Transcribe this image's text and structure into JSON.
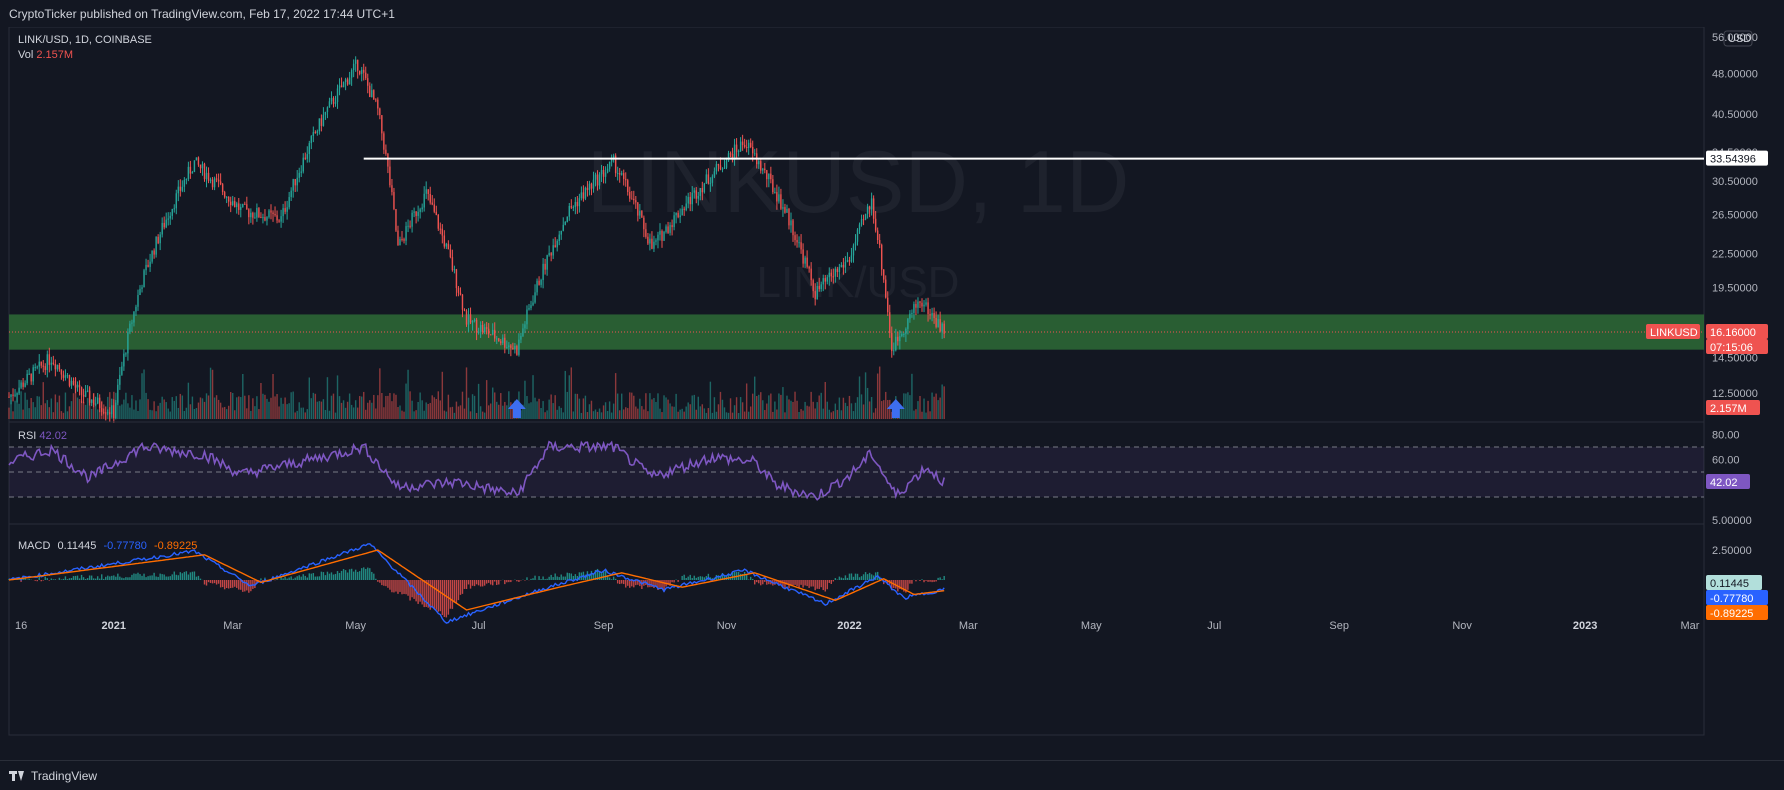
{
  "header": {
    "published": "CryptoTicker published on TradingView.com, Feb 17, 2022 17:44 UTC+1"
  },
  "footer": {
    "brand": "TradingView"
  },
  "legend": {
    "symbol_line": "LINK/USD, 1D, COINBASE",
    "vol_label": "Vol",
    "vol_value": "2.157M",
    "rsi_label": "RSI",
    "rsi_value": "42.02",
    "macd_label": "MACD",
    "macd_hist": "0.11445",
    "macd_line": "-0.77780",
    "macd_signal": "-0.89225"
  },
  "watermark": {
    "big": "LINKUSD, 1D",
    "small": "LINK/USD"
  },
  "currency_badge": "USD",
  "badges": {
    "resistance": "33.54396",
    "symbol_tag": "LINKUSD",
    "price": "16.16000",
    "countdown": "07:15:06",
    "volume": "2.157M",
    "rsi": "42.02",
    "macd_hist": "0.11445",
    "macd_line": "-0.77780",
    "macd_signal": "-0.89225"
  },
  "colors": {
    "background": "#131722",
    "up": "#26a69a",
    "down": "#ef5350",
    "zone": "#2e6b36",
    "rsi_line": "#7e57c2",
    "macd_line": "#2962ff",
    "signal_line": "#ff6d00",
    "arrow": "#3d6ef0"
  },
  "chart_data": [
    {
      "type": "candlestick",
      "title": "LINK/USD, 1D, COINBASE",
      "price_axis_ticks": [
        "56.00000",
        "48.00000",
        "40.50000",
        "34.50000",
        "30.50000",
        "26.50000",
        "22.50000",
        "19.50000",
        "14.50000",
        "12.50000"
      ],
      "scale": "log",
      "x_tick_labels": [
        "16",
        "2021",
        "Mar",
        "May",
        "Jul",
        "Sep",
        "Nov",
        "2022",
        "Mar",
        "May",
        "Jul",
        "Sep",
        "Nov",
        "2023",
        "Mar"
      ],
      "price_path": [
        {
          "date": "2020-11-10",
          "price": 12.3
        },
        {
          "date": "2020-12-01",
          "price": 14.5
        },
        {
          "date": "2020-12-15",
          "price": 12.5
        },
        {
          "date": "2021-01-01",
          "price": 11.5
        },
        {
          "date": "2021-01-15",
          "price": 20.0
        },
        {
          "date": "2021-02-10",
          "price": 33.0
        },
        {
          "date": "2021-03-05",
          "price": 27.0
        },
        {
          "date": "2021-03-25",
          "price": 26.0
        },
        {
          "date": "2021-04-15",
          "price": 40.0
        },
        {
          "date": "2021-05-02",
          "price": 50.0
        },
        {
          "date": "2021-05-12",
          "price": 41.0
        },
        {
          "date": "2021-05-22",
          "price": 23.0
        },
        {
          "date": "2021-06-05",
          "price": 29.0
        },
        {
          "date": "2021-06-25",
          "price": 17.0
        },
        {
          "date": "2021-07-20",
          "price": 15.0
        },
        {
          "date": "2021-08-15",
          "price": 27.0
        },
        {
          "date": "2021-09-06",
          "price": 33.0
        },
        {
          "date": "2021-09-25",
          "price": 23.0
        },
        {
          "date": "2021-10-20",
          "price": 30.0
        },
        {
          "date": "2021-11-10",
          "price": 36.0
        },
        {
          "date": "2021-11-30",
          "price": 27.0
        },
        {
          "date": "2021-12-15",
          "price": 19.0
        },
        {
          "date": "2022-01-01",
          "price": 22.0
        },
        {
          "date": "2022-01-12",
          "price": 28.0
        },
        {
          "date": "2022-01-22",
          "price": 15.0
        },
        {
          "date": "2022-02-05",
          "price": 18.5
        },
        {
          "date": "2022-02-17",
          "price": 16.16
        }
      ],
      "horizontal_line": 33.54396,
      "support_zone": [
        15.0,
        17.4
      ],
      "last_price": 16.16,
      "arrows": [
        {
          "date": "2021-07-20"
        },
        {
          "date": "2022-01-24"
        }
      ],
      "volume_last": "2.157M"
    },
    {
      "type": "line",
      "title": "RSI",
      "value": 42.02,
      "levels": [
        70,
        50,
        30
      ],
      "y_ticks": [
        "80.00",
        "60.00"
      ],
      "path": [
        {
          "date": "2020-11-10",
          "value": 58
        },
        {
          "date": "2020-12-01",
          "value": 68
        },
        {
          "date": "2020-12-20",
          "value": 45
        },
        {
          "date": "2021-01-15",
          "value": 70
        },
        {
          "date": "2021-02-15",
          "value": 64
        },
        {
          "date": "2021-03-05",
          "value": 48
        },
        {
          "date": "2021-04-15",
          "value": 62
        },
        {
          "date": "2021-05-05",
          "value": 70
        },
        {
          "date": "2021-05-22",
          "value": 38
        },
        {
          "date": "2021-06-20",
          "value": 42
        },
        {
          "date": "2021-07-20",
          "value": 32
        },
        {
          "date": "2021-08-05",
          "value": 70
        },
        {
          "date": "2021-09-06",
          "value": 70
        },
        {
          "date": "2021-09-25",
          "value": 46
        },
        {
          "date": "2021-10-25",
          "value": 62
        },
        {
          "date": "2021-11-15",
          "value": 58
        },
        {
          "date": "2021-11-25",
          "value": 40
        },
        {
          "date": "2021-12-15",
          "value": 30
        },
        {
          "date": "2022-01-01",
          "value": 47
        },
        {
          "date": "2022-01-12",
          "value": 65
        },
        {
          "date": "2022-01-24",
          "value": 31
        },
        {
          "date": "2022-02-08",
          "value": 54
        },
        {
          "date": "2022-02-17",
          "value": 42
        }
      ]
    },
    {
      "type": "line",
      "title": "MACD",
      "y_ticks": [
        "5.00000",
        "2.50000"
      ],
      "series": [
        {
          "name": "MACD",
          "path": [
            {
              "date": "2020-11-10",
              "value": 0.0
            },
            {
              "date": "2021-02-10",
              "value": 2.4
            },
            {
              "date": "2021-03-10",
              "value": -0.5
            },
            {
              "date": "2021-05-08",
              "value": 3.0
            },
            {
              "date": "2021-06-15",
              "value": -3.5
            },
            {
              "date": "2021-08-01",
              "value": -0.8
            },
            {
              "date": "2021-09-01",
              "value": 0.8
            },
            {
              "date": "2021-10-01",
              "value": -0.8
            },
            {
              "date": "2021-11-10",
              "value": 0.8
            },
            {
              "date": "2021-12-20",
              "value": -2.0
            },
            {
              "date": "2022-01-15",
              "value": 0.3
            },
            {
              "date": "2022-01-28",
              "value": -1.5
            },
            {
              "date": "2022-02-17",
              "value": -0.78
            }
          ]
        },
        {
          "name": "Signal",
          "path": [
            {
              "date": "2020-11-10",
              "value": 0.0
            },
            {
              "date": "2021-02-15",
              "value": 2.1
            },
            {
              "date": "2021-03-15",
              "value": -0.2
            },
            {
              "date": "2021-05-12",
              "value": 2.5
            },
            {
              "date": "2021-06-25",
              "value": -2.5
            },
            {
              "date": "2021-08-10",
              "value": -0.6
            },
            {
              "date": "2021-09-10",
              "value": 0.6
            },
            {
              "date": "2021-10-10",
              "value": -0.6
            },
            {
              "date": "2021-11-15",
              "value": 0.6
            },
            {
              "date": "2021-12-25",
              "value": -1.7
            },
            {
              "date": "2022-01-18",
              "value": 0.1
            },
            {
              "date": "2022-02-02",
              "value": -1.2
            },
            {
              "date": "2022-02-17",
              "value": -0.89
            }
          ]
        }
      ]
    }
  ]
}
